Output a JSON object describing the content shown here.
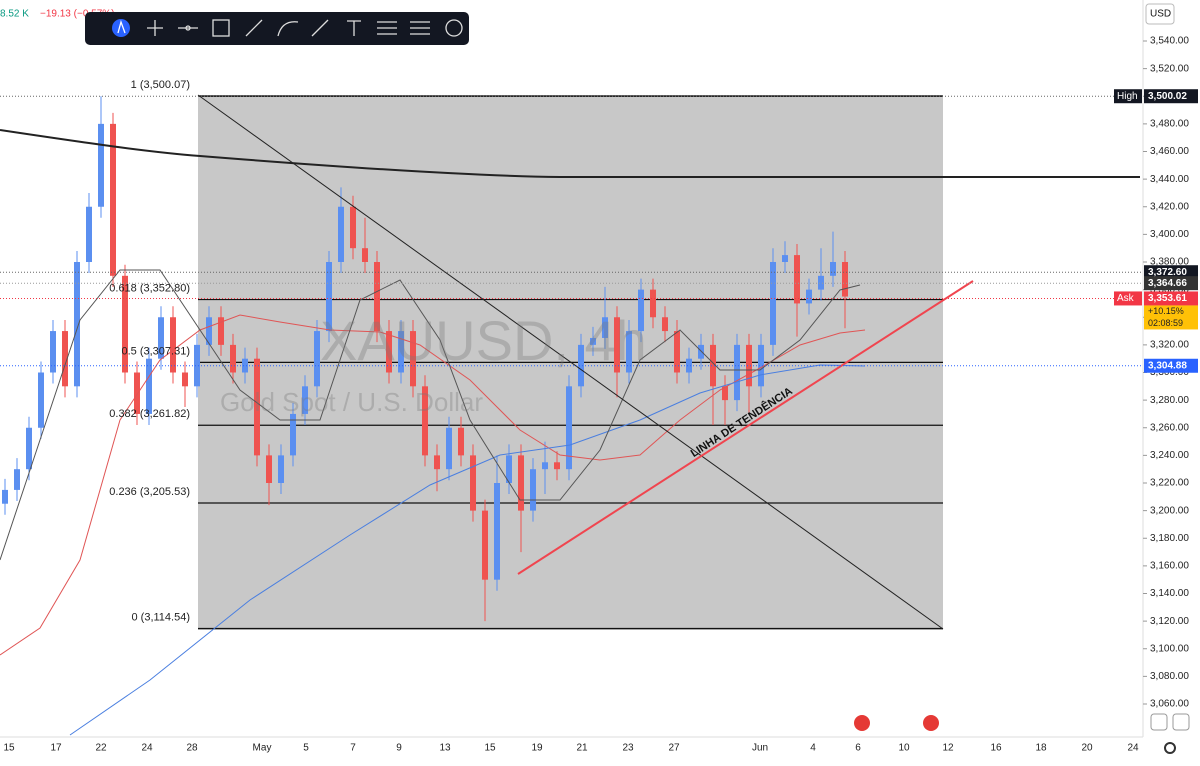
{
  "header": {
    "volume": "8.52 K",
    "change": "−19.13 (−0.57%)"
  },
  "watermark": {
    "symbol": "XAUUSD, 4h",
    "description": "Gold Spot / U.S. Dollar"
  },
  "price_axis": {
    "currency": "USD",
    "ticks": [
      {
        "value": 3540,
        "label": "3,540.00"
      },
      {
        "value": 3520,
        "label": "3,520.00"
      },
      {
        "value": 3500,
        "label": "3,500.00"
      },
      {
        "value": 3480,
        "label": "3,480.00"
      },
      {
        "value": 3460,
        "label": "3,460.00"
      },
      {
        "value": 3440,
        "label": "3,440.00"
      },
      {
        "value": 3420,
        "label": "3,420.00"
      },
      {
        "value": 3400,
        "label": "3,400.00"
      },
      {
        "value": 3380,
        "label": "3,380.00"
      },
      {
        "value": 3360,
        "label": "3,360.00"
      },
      {
        "value": 3340,
        "label": "3,340.00"
      },
      {
        "value": 3320,
        "label": "3,320.00"
      },
      {
        "value": 3300,
        "label": "3,300.00"
      },
      {
        "value": 3280,
        "label": "3,280.00"
      },
      {
        "value": 3260,
        "label": "3,260.00"
      },
      {
        "value": 3240,
        "label": "3,240.00"
      },
      {
        "value": 3220,
        "label": "3,220.00"
      },
      {
        "value": 3200,
        "label": "3,200.00"
      },
      {
        "value": 3180,
        "label": "3,180.00"
      },
      {
        "value": 3160,
        "label": "3,160.00"
      },
      {
        "value": 3140,
        "label": "3,140.00"
      },
      {
        "value": 3120,
        "label": "3,120.00"
      },
      {
        "value": 3100,
        "label": "3,100.00"
      },
      {
        "value": 3080,
        "label": "3,080.00"
      },
      {
        "value": 3060,
        "label": "3,060.00"
      }
    ]
  },
  "time_axis": {
    "labels": [
      "15",
      "17",
      "22",
      "24",
      "28",
      "May",
      "5",
      "7",
      "9",
      "13",
      "15",
      "19",
      "21",
      "23",
      "27",
      "Jun",
      "4",
      "6",
      "10",
      "12",
      "16",
      "18",
      "20",
      "24"
    ]
  },
  "fib_levels": [
    {
      "price": 3500.07,
      "label": "1 (3,500.07)"
    },
    {
      "price": 3352.8,
      "label": "0.618 (3,352.80)"
    },
    {
      "price": 3307.31,
      "label": "0.5 (3,307.31)"
    },
    {
      "price": 3261.82,
      "label": "0.382 (3,261.82)"
    },
    {
      "price": 3205.53,
      "label": "0.236 (3,205.53)"
    },
    {
      "price": 3114.54,
      "label": "0 (3,114.54)"
    }
  ],
  "price_tags": [
    {
      "title": "High",
      "value": 3500.02,
      "label": "3,500.02"
    },
    {
      "value": 3372.6,
      "label": "3,372.60"
    },
    {
      "value": 3364.66,
      "label": "3,364.66"
    },
    {
      "title": "Ask",
      "value": 3353.61,
      "label": "3,353.61",
      "change": "+10.15%",
      "countdown": "02:08:59"
    },
    {
      "value": 3304.88,
      "label": "3,304.88"
    }
  ],
  "annotation": "LINHA DE TENDÊNCIA",
  "candles": [
    [
      3205,
      3223,
      3197,
      3215
    ],
    [
      3215,
      3238,
      3207,
      3230
    ],
    [
      3230,
      3268,
      3222,
      3260
    ],
    [
      3260,
      3308,
      3252,
      3300
    ],
    [
      3300,
      3338,
      3292,
      3330
    ],
    [
      3330,
      3338,
      3282,
      3290
    ],
    [
      3290,
      3388,
      3282,
      3380
    ],
    [
      3380,
      3430,
      3372,
      3420
    ],
    [
      3420,
      3500,
      3412,
      3480
    ],
    [
      3480,
      3488,
      3362,
      3370
    ],
    [
      3370,
      3378,
      3292,
      3300
    ],
    [
      3300,
      3308,
      3262,
      3270
    ],
    [
      3270,
      3318,
      3262,
      3310
    ],
    [
      3310,
      3348,
      3302,
      3340
    ],
    [
      3340,
      3348,
      3292,
      3300
    ],
    [
      3300,
      3308,
      3275,
      3290
    ],
    [
      3290,
      3328,
      3282,
      3320
    ],
    [
      3320,
      3348,
      3312,
      3340
    ],
    [
      3340,
      3348,
      3312,
      3320
    ],
    [
      3320,
      3328,
      3292,
      3300
    ],
    [
      3300,
      3318,
      3292,
      3310
    ],
    [
      3310,
      3318,
      3232,
      3240
    ],
    [
      3240,
      3248,
      3204,
      3220
    ],
    [
      3220,
      3248,
      3212,
      3240
    ],
    [
      3240,
      3278,
      3232,
      3270
    ],
    [
      3270,
      3298,
      3262,
      3290
    ],
    [
      3290,
      3338,
      3282,
      3330
    ],
    [
      3330,
      3388,
      3322,
      3380
    ],
    [
      3380,
      3434,
      3372,
      3420
    ],
    [
      3420,
      3428,
      3382,
      3390
    ],
    [
      3390,
      3412,
      3372,
      3380
    ],
    [
      3380,
      3388,
      3322,
      3330
    ],
    [
      3330,
      3338,
      3292,
      3300
    ],
    [
      3300,
      3338,
      3292,
      3330
    ],
    [
      3330,
      3338,
      3282,
      3290
    ],
    [
      3290,
      3298,
      3232,
      3240
    ],
    [
      3240,
      3248,
      3214,
      3230
    ],
    [
      3230,
      3268,
      3222,
      3260
    ],
    [
      3260,
      3268,
      3232,
      3240
    ],
    [
      3240,
      3248,
      3192,
      3200
    ],
    [
      3200,
      3208,
      3120,
      3150
    ],
    [
      3150,
      3240,
      3142,
      3220
    ],
    [
      3220,
      3248,
      3212,
      3240
    ],
    [
      3240,
      3248,
      3170,
      3200
    ],
    [
      3200,
      3238,
      3192,
      3230
    ],
    [
      3230,
      3250,
      3212,
      3235
    ],
    [
      3235,
      3243,
      3222,
      3230
    ],
    [
      3230,
      3298,
      3222,
      3290
    ],
    [
      3290,
      3328,
      3282,
      3320
    ],
    [
      3320,
      3333,
      3312,
      3325
    ],
    [
      3325,
      3362,
      3317,
      3340
    ],
    [
      3340,
      3348,
      3282,
      3300
    ],
    [
      3300,
      3338,
      3292,
      3330
    ],
    [
      3330,
      3368,
      3322,
      3360
    ],
    [
      3360,
      3368,
      3332,
      3340
    ],
    [
      3340,
      3348,
      3322,
      3330
    ],
    [
      3330,
      3338,
      3292,
      3300
    ],
    [
      3300,
      3318,
      3292,
      3310
    ],
    [
      3310,
      3328,
      3302,
      3320
    ],
    [
      3320,
      3328,
      3262,
      3290
    ],
    [
      3290,
      3298,
      3262,
      3280
    ],
    [
      3280,
      3328,
      3272,
      3320
    ],
    [
      3320,
      3328,
      3270,
      3290
    ],
    [
      3290,
      3328,
      3282,
      3320
    ],
    [
      3320,
      3390,
      3312,
      3380
    ],
    [
      3380,
      3395,
      3372,
      3385
    ],
    [
      3385,
      3393,
      3326,
      3350
    ],
    [
      3350,
      3368,
      3342,
      3360
    ],
    [
      3360,
      3390,
      3352,
      3370
    ],
    [
      3370,
      3402,
      3362,
      3380
    ],
    [
      3380,
      3388,
      3332,
      3355
    ]
  ]
}
